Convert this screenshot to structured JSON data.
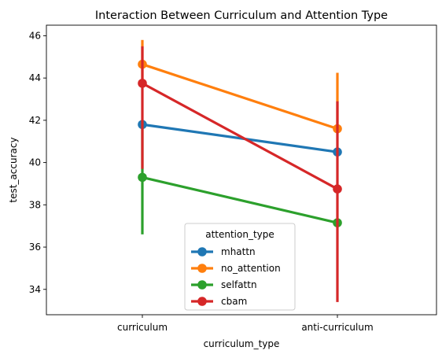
{
  "chart_data": {
    "type": "line",
    "title": "Interaction Between Curriculum and Attention Type",
    "xlabel": "curriculum_type",
    "ylabel": "test_accuracy",
    "categories": [
      "curriculum",
      "anti-curriculum"
    ],
    "ylim": [
      32.8,
      46.5
    ],
    "yticks": [
      "34",
      "36",
      "38",
      "40",
      "42",
      "44",
      "46"
    ],
    "grid": false,
    "legend": {
      "title": "attention_type",
      "placement": "lower-center"
    },
    "series": [
      {
        "name": "mhattn",
        "color": "#1f77b4",
        "values": [
          41.8,
          40.5
        ],
        "ci": [
          [
            41.7,
            41.9
          ],
          [
            40.4,
            40.6
          ]
        ]
      },
      {
        "name": "no_attention",
        "color": "#ff7f0e",
        "values": [
          44.65,
          41.6
        ],
        "ci": [
          [
            43.7,
            45.8
          ],
          [
            41.5,
            44.25
          ]
        ]
      },
      {
        "name": "selfattn",
        "color": "#2ca02c",
        "values": [
          39.3,
          37.15
        ],
        "ci": [
          [
            36.6,
            42.0
          ],
          [
            37.05,
            37.25
          ]
        ]
      },
      {
        "name": "cbam",
        "color": "#d62728",
        "values": [
          43.75,
          38.75
        ],
        "ci": [
          [
            39.7,
            45.5
          ],
          [
            33.4,
            42.9
          ]
        ]
      }
    ]
  }
}
